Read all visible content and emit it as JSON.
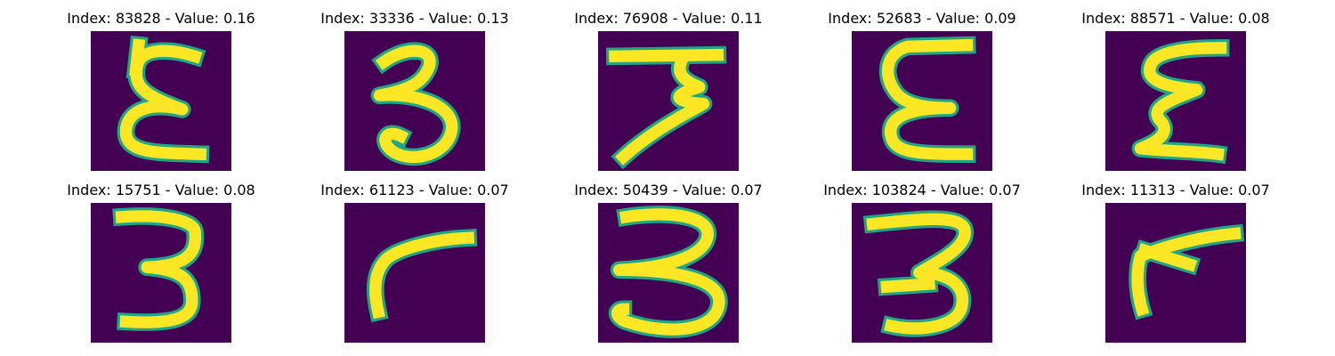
{
  "colors": {
    "background": "#440154",
    "stroke": "#fde725",
    "edge": "#21a685"
  },
  "panels": [
    {
      "label": "Index: 83828 - Value: 0.16",
      "glyph": "epsilon-upright",
      "strokes": [
        "M 0.74 0.18 C 0.55 0.12 0.35 0.12 0.33 0.25 C 0.30 0.40 0.38 0.46 0.65 0.56 C 0.40 0.50 0.25 0.58 0.25 0.72 C 0.25 0.88 0.48 0.87 0.78 0.88",
        "M 0.32 0.28 L 0.34 0.10"
      ]
    },
    {
      "label": "Index: 33336 - Value: 0.13",
      "glyph": "three-curly",
      "strokes": [
        "M 0.28 0.22 C 0.45 0.10 0.65 0.12 0.60 0.26 C 0.55 0.38 0.45 0.42 0.25 0.46 C 0.55 0.44 0.80 0.55 0.76 0.72 C 0.72 0.90 0.45 0.95 0.33 0.85 C 0.25 0.78 0.30 0.70 0.40 0.75"
      ]
    },
    {
      "label": "Index: 76908 - Value: 0.11",
      "glyph": "seven-three",
      "strokes": [
        "M 0.12 0.18 L 0.85 0.17",
        "M 0.60 0.20 C 0.55 0.30 0.60 0.35 0.72 0.40 C 0.55 0.45 0.50 0.50 0.75 0.52 C 0.65 0.58 0.40 0.70 0.18 0.90"
      ]
    },
    {
      "label": "Index: 52683 - Value: 0.09",
      "glyph": "epsilon-tall",
      "strokes": [
        "M 0.82 0.10 L 0.40 0.11 C 0.25 0.15 0.22 0.30 0.30 0.42 C 0.36 0.52 0.50 0.55 0.70 0.55 C 0.40 0.55 0.25 0.62 0.28 0.75 C 0.30 0.88 0.50 0.88 0.82 0.88"
      ]
    },
    {
      "label": "Index: 88571 - Value: 0.08",
      "glyph": "epsilon-zigzag",
      "strokes": [
        "M 0.82 0.12 C 0.60 0.12 0.35 0.14 0.32 0.25 C 0.28 0.36 0.45 0.40 0.65 0.42 C 0.45 0.50 0.30 0.55 0.40 0.65 C 0.45 0.72 0.40 0.78 0.25 0.84 C 0.45 0.86 0.65 0.86 0.80 0.88"
      ]
    },
    {
      "label": "Index: 15751 - Value: 0.08",
      "glyph": "three-block",
      "strokes": [
        "M 0.22 0.10 C 0.50 0.08 0.72 0.12 0.74 0.20 C 0.76 0.35 0.70 0.45 0.40 0.46 C 0.65 0.48 0.72 0.55 0.72 0.70 C 0.72 0.82 0.60 0.87 0.25 0.85"
      ]
    },
    {
      "label": "Index: 61123 - Value: 0.07",
      "glyph": "seven-bent",
      "strokes": [
        "M 0.88 0.25 C 0.65 0.26 0.40 0.32 0.30 0.40 C 0.22 0.48 0.20 0.60 0.24 0.78"
      ]
    },
    {
      "label": "Index: 50439 - Value: 0.07",
      "glyph": "three-open",
      "strokes": [
        "M 0.20 0.10 C 0.45 0.06 0.78 0.08 0.78 0.22 C 0.78 0.36 0.55 0.46 0.15 0.48 C 0.45 0.48 0.88 0.52 0.86 0.72 C 0.84 0.92 0.50 0.95 0.20 0.85 C 0.12 0.82 0.12 0.76 0.18 0.76"
      ]
    },
    {
      "label": "Index: 103824 - Value: 0.07",
      "glyph": "three-thick",
      "strokes": [
        "M 0.15 0.15 C 0.45 0.12 0.75 0.08 0.80 0.18 C 0.84 0.30 0.65 0.40 0.48 0.50 C 0.70 0.50 0.82 0.60 0.78 0.75 C 0.74 0.90 0.45 0.92 0.28 0.88",
        "M 0.25 0.60 L 0.55 0.58"
      ]
    },
    {
      "label": "Index: 11313 - Value: 0.07",
      "glyph": "seven-thick",
      "strokes": [
        "M 0.92 0.22 C 0.70 0.24 0.45 0.30 0.25 0.38 C 0.22 0.48 0.22 0.62 0.26 0.76",
        "M 0.28 0.34 L 0.60 0.44"
      ]
    }
  ]
}
